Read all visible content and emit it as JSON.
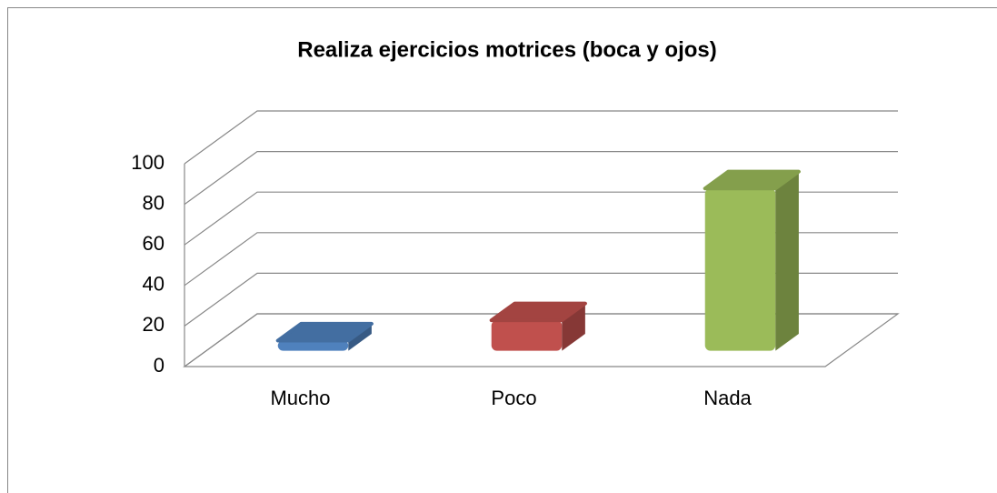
{
  "chart_data": {
    "type": "bar",
    "title": "Realiza ejercicios motrices (boca y ojos)",
    "categories": [
      "Mucho",
      "Poco",
      "Nada"
    ],
    "values": [
      5,
      15,
      80
    ],
    "colors": [
      "#4f81bd",
      "#c0504d",
      "#9bbb59"
    ],
    "ylim": [
      0,
      100
    ],
    "yticks": [
      0,
      20,
      40,
      60,
      80,
      100
    ],
    "grid": true
  }
}
